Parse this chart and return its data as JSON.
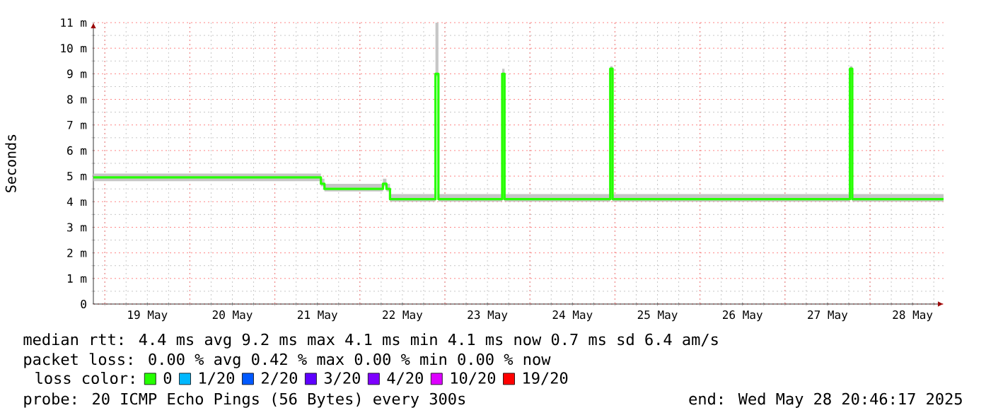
{
  "chart_data": {
    "type": "step",
    "ylabel": "Seconds",
    "legend_title": "loss color:",
    "xlim": [
      "2025-05-18T20:46",
      "2025-05-28T20:46"
    ],
    "xticks": [
      {
        "value": "2025-05-19T12:00",
        "label": "19 May"
      },
      {
        "value": "2025-05-20T12:00",
        "label": "20 May"
      },
      {
        "value": "2025-05-21T12:00",
        "label": "21 May"
      },
      {
        "value": "2025-05-22T12:00",
        "label": "22 May"
      },
      {
        "value": "2025-05-23T12:00",
        "label": "23 May"
      },
      {
        "value": "2025-05-24T12:00",
        "label": "24 May"
      },
      {
        "value": "2025-05-25T12:00",
        "label": "25 May"
      },
      {
        "value": "2025-05-26T12:00",
        "label": "26 May"
      },
      {
        "value": "2025-05-27T12:00",
        "label": "27 May"
      },
      {
        "value": "2025-05-28T12:00",
        "label": "28 May"
      }
    ],
    "ylim": [
      0,
      11
    ],
    "yticks": [
      0,
      {
        "value": 1,
        "label": "1 m"
      },
      {
        "value": 2,
        "label": "2 m"
      },
      {
        "value": 3,
        "label": "3 m"
      },
      {
        "value": 4,
        "label": "4 m"
      },
      {
        "value": 5,
        "label": "5 m"
      },
      {
        "value": 6,
        "label": "6 m"
      },
      {
        "value": 7,
        "label": "7 m"
      },
      {
        "value": 8,
        "label": "8 m"
      },
      {
        "value": 9,
        "label": "9 m"
      },
      {
        "value": 10,
        "label": "10 m"
      },
      {
        "value": 11,
        "label": "11 m"
      }
    ],
    "grid": true,
    "legend": "bottom",
    "series": [
      {
        "name": "0",
        "color": "#26ff00",
        "x": [
          "2025-05-18T20:46",
          "2025-05-19T12:00",
          "2025-05-20T12:00",
          "2025-05-21T12:00",
          "2025-05-21T13:00",
          "2025-05-21T14:00",
          "2025-05-22T06:00",
          "2025-05-22T06:30",
          "2025-05-22T07:30",
          "2025-05-22T08:30",
          "2025-05-22T21:10",
          "2025-05-22T21:20",
          "2025-05-22T22:00",
          "2025-05-22T22:10",
          "2025-05-23T16:00",
          "2025-05-23T16:10",
          "2025-05-23T16:40",
          "2025-05-23T16:50",
          "2025-05-24T22:30",
          "2025-05-24T22:40",
          "2025-05-24T23:10",
          "2025-05-24T23:20",
          "2025-05-27T18:10",
          "2025-05-27T18:20",
          "2025-05-27T18:50",
          "2025-05-27T19:00",
          "2025-05-28T20:46"
        ],
        "values": [
          4.95,
          4.95,
          4.95,
          4.95,
          4.7,
          4.5,
          4.5,
          4.7,
          4.5,
          4.1,
          4.1,
          9.0,
          9.0,
          4.1,
          4.1,
          9.0,
          9.0,
          4.1,
          4.1,
          9.2,
          9.2,
          4.1,
          4.1,
          9.2,
          9.2,
          4.1,
          4.1
        ],
        "lower": [
          4.8,
          4.8,
          4.8,
          4.8,
          4.6,
          4.4,
          4.4,
          4.6,
          4.4,
          4.0,
          4.0,
          8.9,
          8.9,
          4.0,
          4.0,
          8.9,
          8.9,
          4.0,
          4.0,
          9.1,
          9.1,
          4.0,
          4.0,
          9.1,
          9.1,
          4.0,
          4.0
        ],
        "upper": [
          5.1,
          5.1,
          5.1,
          5.1,
          4.9,
          4.7,
          4.7,
          4.9,
          4.7,
          4.3,
          4.3,
          11.0,
          11.0,
          4.3,
          4.3,
          9.2,
          9.2,
          4.3,
          4.3,
          9.3,
          9.3,
          4.3,
          4.3,
          9.3,
          9.3,
          4.3,
          4.3
        ]
      },
      {
        "name": "1/20",
        "color": "#00b8ff"
      },
      {
        "name": "2/20",
        "color": "#0059ff"
      },
      {
        "name": "3/20",
        "color": "#5e00ff"
      },
      {
        "name": "4/20",
        "color": "#7e00ff"
      },
      {
        "name": "10/20",
        "color": "#dd00ff"
      },
      {
        "name": "19/20",
        "color": "#ff0000"
      }
    ],
    "annotations": [
      "median rtt:  4.4 ms avg  9.2 ms max  4.1 ms min  4.1 ms now  0.7 ms sd  6.4   am/s",
      "packet loss: 0.00 % avg  0.42 % max  0.00 % min  0.00 % now",
      "probe:       20 ICMP Echo Pings (56 Bytes) every 300s",
      "end: Wed May 28 20:46:17 2025"
    ]
  }
}
